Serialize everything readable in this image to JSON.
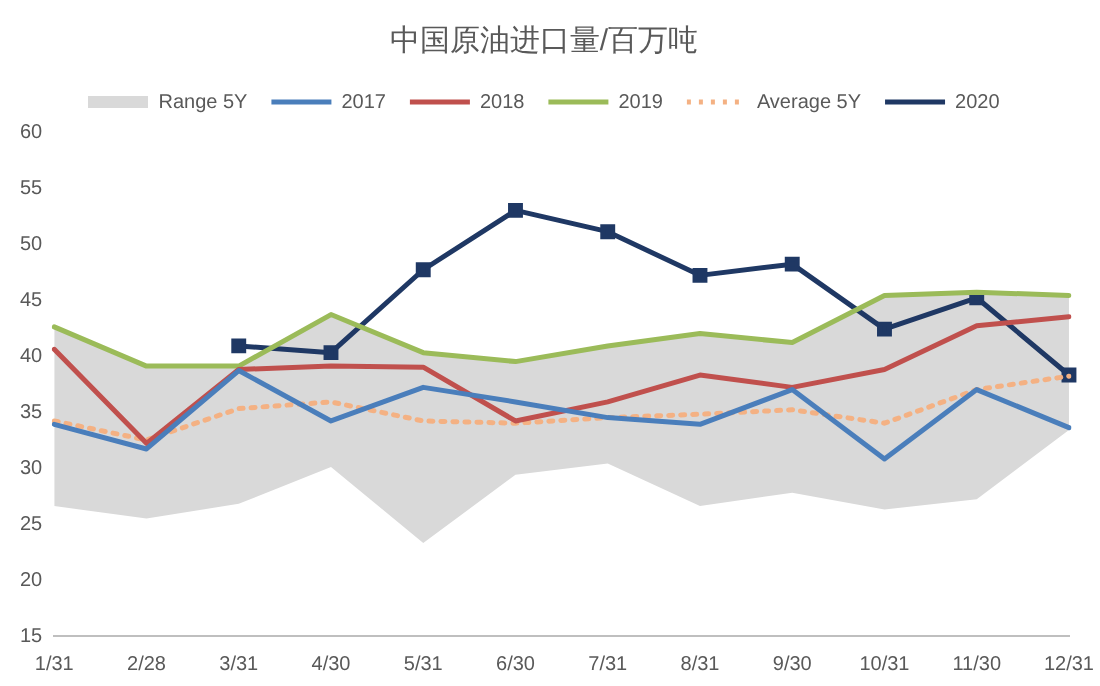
{
  "chart_data": {
    "type": "line",
    "title": "中国原油进口量/百万吨",
    "categories": [
      "1/31",
      "2/28",
      "3/31",
      "4/30",
      "5/31",
      "6/30",
      "7/31",
      "8/31",
      "9/30",
      "10/31",
      "11/30",
      "12/31"
    ],
    "ylim": [
      15,
      60
    ],
    "yticks": [
      15,
      20,
      25,
      30,
      35,
      40,
      45,
      50,
      55,
      60
    ],
    "grid": false,
    "legend": "top",
    "marker": "none",
    "annotations": [
      "Range 5Y"
    ],
    "series": [
      {
        "name": "2017",
        "color": "#4a7ebb",
        "values": [
          33.9,
          31.7,
          38.7,
          34.2,
          37.2,
          35.9,
          34.5,
          33.9,
          37.0,
          30.8,
          37.0,
          33.6
        ]
      },
      {
        "name": "2018",
        "color": "#c0504d",
        "values": [
          40.6,
          32.2,
          38.8,
          39.1,
          39.0,
          34.2,
          35.9,
          38.3,
          37.2,
          38.8,
          42.7,
          43.5
        ]
      },
      {
        "name": "2019",
        "color": "#9bbb59",
        "values": [
          42.6,
          39.1,
          39.1,
          43.7,
          40.3,
          39.5,
          40.9,
          42.0,
          41.2,
          45.4,
          45.7,
          45.4
        ]
      },
      {
        "name": "Average 5Y",
        "color": "#f4b183",
        "line_style": "dotted",
        "values": [
          34.2,
          32.5,
          35.3,
          35.9,
          34.2,
          34.0,
          34.5,
          34.8,
          35.2,
          34.0,
          37.0,
          38.2
        ],
        "lower": [
          26.6,
          25.5,
          26.8,
          30.1,
          23.3,
          29.4,
          30.4,
          26.6,
          27.8,
          26.3,
          27.2,
          33.4
        ],
        "upper": [
          42.6,
          39.1,
          39.1,
          43.7,
          40.3,
          39.5,
          40.9,
          42.0,
          41.2,
          45.4,
          45.7,
          45.4
        ]
      },
      {
        "name": "2020",
        "color": "#1f3864",
        "marker": "square",
        "values": [
          null,
          null,
          40.9,
          40.3,
          47.7,
          53.0,
          51.1,
          47.2,
          48.2,
          42.4,
          45.2,
          38.3
        ]
      }
    ]
  }
}
